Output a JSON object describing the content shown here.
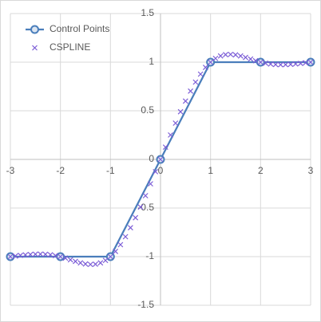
{
  "chart_data": {
    "type": "scatter",
    "xlim": [
      -3,
      3
    ],
    "xticks": [
      -3,
      -2,
      -1,
      0,
      1,
      2,
      3
    ],
    "ylim": [
      -1.5,
      1.5
    ],
    "yticks": [
      -1.5,
      -1,
      -0.5,
      0,
      0.5,
      1,
      1.5
    ],
    "grid": true,
    "legend": "top-left",
    "series": [
      {
        "name": "Control Points",
        "color": "#4a7ebb",
        "line": true,
        "marker": "circle",
        "x": [
          -3,
          -2,
          -1,
          0,
          1,
          2,
          3
        ],
        "values": [
          -1,
          -1,
          -1,
          0,
          1,
          1,
          1
        ]
      },
      {
        "name": "CSPLINE",
        "color": "#7b5cd6",
        "line": false,
        "marker": "x",
        "x": [
          -3,
          -2.9,
          -2.8,
          -2.7,
          -2.6,
          -2.5,
          -2.4,
          -2.3,
          -2.2,
          -2.1,
          -2,
          -1.9,
          -1.8,
          -1.7,
          -1.6,
          -1.5,
          -1.4,
          -1.3,
          -1.2,
          -1.1,
          -1,
          -0.9,
          -0.8,
          -0.7,
          -0.6,
          -0.5,
          -0.4,
          -0.3,
          -0.2,
          -0.1,
          0,
          0.1,
          0.2,
          0.3,
          0.4,
          0.5,
          0.6,
          0.7,
          0.8,
          0.9,
          1,
          1.1,
          1.2,
          1.3,
          1.4,
          1.5,
          1.6,
          1.7,
          1.8,
          1.9,
          2,
          2.1,
          2.2,
          2.3,
          2.4,
          2.5,
          2.6,
          2.7,
          2.8,
          2.9,
          3
        ],
        "values": [
          -1,
          -0.993,
          -0.987,
          -0.982,
          -0.978,
          -0.975,
          -0.974,
          -0.976,
          -0.981,
          -0.989,
          -1,
          -1.015,
          -1.032,
          -1.049,
          -1.064,
          -1.075,
          -1.08,
          -1.077,
          -1.064,
          -1.039,
          -1,
          -0.946,
          -0.877,
          -0.795,
          -0.702,
          -0.6,
          -0.49,
          -0.373,
          -0.251,
          -0.126,
          0,
          0.126,
          0.251,
          0.373,
          0.49,
          0.6,
          0.702,
          0.795,
          0.877,
          0.946,
          1,
          1.039,
          1.064,
          1.077,
          1.08,
          1.075,
          1.064,
          1.049,
          1.032,
          1.015,
          1,
          0.989,
          0.981,
          0.976,
          0.974,
          0.975,
          0.978,
          0.982,
          0.987,
          0.993,
          1
        ]
      }
    ]
  }
}
